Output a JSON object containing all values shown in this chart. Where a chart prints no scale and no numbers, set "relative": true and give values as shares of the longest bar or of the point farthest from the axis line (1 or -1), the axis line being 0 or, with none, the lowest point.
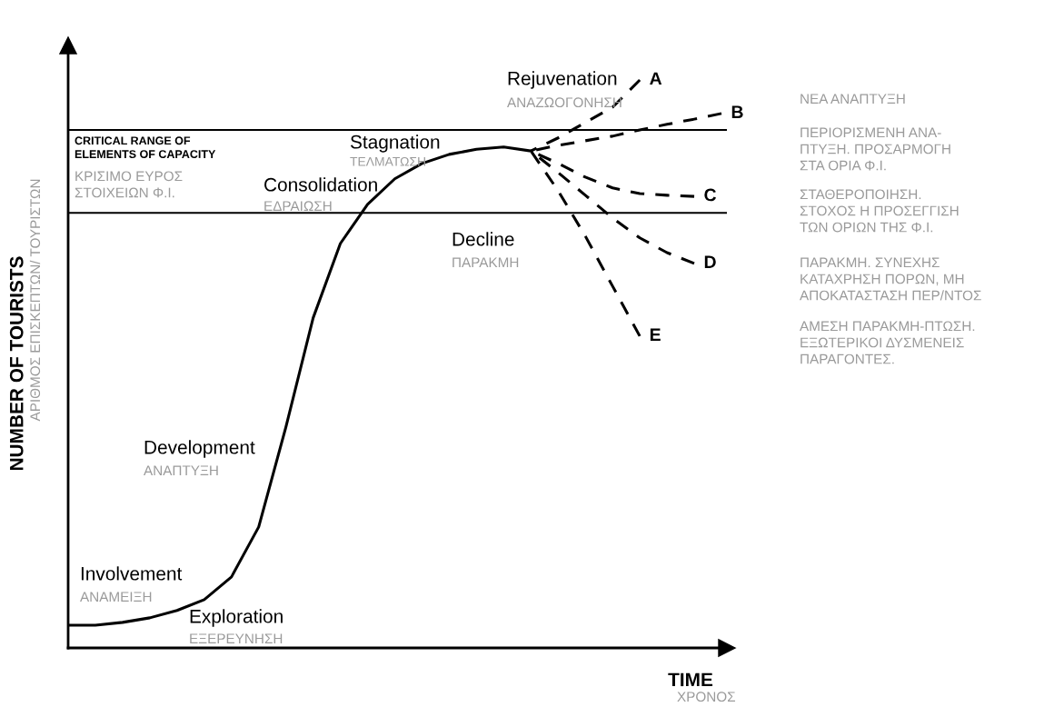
{
  "chart_data": {
    "type": "line",
    "relative": true,
    "xlabel": "TIME",
    "ylabel": "NUMBER OF TOURISTS",
    "categories": [
      null,
      null,
      null,
      null,
      null,
      null,
      null,
      null,
      null,
      null,
      null,
      null,
      null,
      null,
      null,
      null,
      null,
      null,
      null,
      null,
      null,
      null,
      null,
      null,
      null
    ],
    "series": [
      {
        "color": "#000000",
        "line_style": "solid",
        "values": [
          0.04,
          0.04,
          0.045,
          0.053,
          0.066,
          0.085,
          0.125,
          0.213,
          0.389,
          0.581,
          0.712,
          0.781,
          0.826,
          0.853,
          0.869,
          0.878,
          0.882,
          0.875,
          null,
          null,
          null,
          null,
          null,
          null,
          null
        ]
      },
      {
        "name": "A",
        "color": "#000000",
        "line_style": "dashed",
        "values": [
          null,
          null,
          null,
          null,
          null,
          null,
          null,
          null,
          null,
          null,
          null,
          null,
          null,
          null,
          null,
          null,
          null,
          0.875,
          0.898,
          0.925,
          0.952,
          1.0,
          null,
          null,
          null
        ]
      },
      {
        "name": "B",
        "color": "#000000",
        "line_style": "dashed",
        "values": [
          null,
          null,
          null,
          null,
          null,
          null,
          null,
          null,
          null,
          null,
          null,
          null,
          null,
          null,
          null,
          null,
          null,
          0.875,
          0.885,
          0.893,
          0.901,
          0.912,
          0.922,
          0.931,
          0.941
        ]
      },
      {
        "name": "C",
        "color": "#000000",
        "line_style": "dashed",
        "values": [
          null,
          null,
          null,
          null,
          null,
          null,
          null,
          null,
          null,
          null,
          null,
          null,
          null,
          null,
          null,
          null,
          null,
          0.875,
          0.853,
          0.829,
          0.81,
          0.8,
          0.797,
          0.795,
          null
        ]
      },
      {
        "name": "D",
        "color": "#000000",
        "line_style": "dashed",
        "values": [
          null,
          null,
          null,
          null,
          null,
          null,
          null,
          null,
          null,
          null,
          null,
          null,
          null,
          null,
          null,
          null,
          null,
          0.875,
          0.837,
          0.797,
          0.757,
          0.722,
          0.696,
          0.677,
          null
        ]
      },
      {
        "name": "E",
        "color": "#000000",
        "line_style": "dashed",
        "values": [
          null,
          null,
          null,
          null,
          null,
          null,
          null,
          null,
          null,
          null,
          null,
          null,
          null,
          null,
          null,
          null,
          null,
          0.875,
          0.805,
          0.725,
          0.637,
          0.549,
          null,
          null,
          null
        ]
      }
    ],
    "ref_lines": [
      {
        "axis": "y",
        "value": 0.912,
        "color": "#000000"
      },
      {
        "axis": "y",
        "value": 0.766,
        "color": "#000000"
      }
    ],
    "marker": "none",
    "legend": false,
    "annotations": [
      "Rejuvenation",
      "ΑΝΑΖΩΟΓΟΝΗΣΗ",
      "CRITICAL RANGE OF\nELEMENTS OF CAPACITY",
      "ΚΡΙΣΙΜΟ ΕΥΡΟΣ\nΣΤΟΙΧΕΙΩΝ Φ.Ι.",
      "Stagnation",
      "ΤΕΛΜΑΤΩΣΗ",
      "Consolidation",
      "ΕΔΡΑΙΩΣΗ",
      "Decline",
      "ΠΑΡΑΚΜΗ",
      "Development",
      "ΑΝΑΠΤΥΞΗ",
      "Involvement",
      "ΑΝΑΜΕΙΞΗ",
      "Exploration",
      "ΕΞΕΡΕΥΝΗΣΗ",
      "ΑΡΙΘΜΟΣ ΕΠΙΣΚΕΠΤΩΝ/ ΤΟΥΡΙΣΤΩΝ",
      "ΧΡΟΝΟΣ",
      "ΝΕΑ ΑΝΑΠΤΥΞΗ",
      "ΠΕΡΙΟΡΙΣΜΕΝΗ ΑΝΑ-\nΠΤΥΞΗ. ΠΡΟΣΑΡΜΟΓΗ\nΣΤΑ ΟΡΙΑ Φ.Ι.",
      "ΣΤΑΘΕΡΟΠΟΙΗΣΗ.\nΣΤΟΧΟΣ Η ΠΡΟΣΕΓΓΙΣΗ\nΤΩΝ ΟΡΙΩΝ ΤΗΣ Φ.Ι.",
      "ΠΑΡΑΚΜΗ. ΣΥΝΕΧΗΣ\nΚΑΤΑΧΡΗΣΗ ΠΟΡΩΝ, ΜΗ\nΑΠΟΚΑΤΑΣΤΑΣΗ ΠΕΡ/ΝΤΟΣ",
      "ΑΜΕΣΗ ΠΑΡΑΚΜΗ-ΠΤΩΣΗ.\nΕΞΩΤΕΡΙΚΟΙ ΔΥΣΜΕΝΕΙΣ\nΠΑΡΑΓΟΝΤΕΣ."
    ]
  }
}
